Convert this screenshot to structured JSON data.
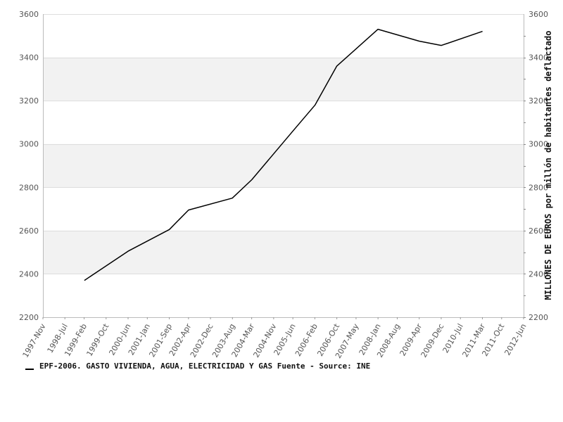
{
  "chart_data": {
    "type": "line",
    "x": [
      "1999-Feb",
      "2000-Jun",
      "2001-Sep",
      "2002-Apr",
      "2003-Aug",
      "2004-Mar",
      "2005-Jun",
      "2006-Feb",
      "2006-Oct",
      "2008-Jan",
      "2009-Apr",
      "2009-Dec",
      "2011-Mar"
    ],
    "x_numeric": [
      1999.09,
      2000.42,
      2001.67,
      2002.25,
      2003.58,
      2004.17,
      2005.42,
      2006.09,
      2006.75,
      2008.0,
      2009.25,
      2009.92,
      2011.17
    ],
    "series": [
      {
        "name": "EPF-2006. GASTO VIVIENDA, AGUA, ELECTRICIDAD Y GAS  Fuente - Source: INE",
        "color": "#000000",
        "values": [
          2370,
          2505,
          2605,
          2695,
          2750,
          2835,
          3060,
          3180,
          3360,
          3530,
          3475,
          3455,
          3520
        ]
      }
    ],
    "x_ticks": [
      "1997-Nov",
      "1998-Jul",
      "1999-Feb",
      "1999-Oct",
      "2000-Jun",
      "2001-Jan",
      "2001-Sep",
      "2002-Apr",
      "2002-Dec",
      "2003-Aug",
      "2004-Mar",
      "2004-Nov",
      "2005-Jun",
      "2006-Feb",
      "2006-Oct",
      "2007-May",
      "2008-Jan",
      "2008-Aug",
      "2009-Apr",
      "2009-Dec",
      "2010-Jul",
      "2011-Mar",
      "2011-Oct",
      "2012-Jun"
    ],
    "x_range": [
      "1997-Nov",
      "2012-Jun"
    ],
    "y_ticks": [
      "2200",
      "2400",
      "2600",
      "2800",
      "3000",
      "3200",
      "3400",
      "3600"
    ],
    "ylim": [
      2200,
      3600
    ],
    "ylabel": "MILLONES DE EUROS por millón de habitantes deflactado",
    "xlabel": "",
    "title": "",
    "grid": true,
    "band_colors": [
      "#ffffff",
      "#f2f2f2"
    ],
    "legend_position": "bottom-left"
  }
}
